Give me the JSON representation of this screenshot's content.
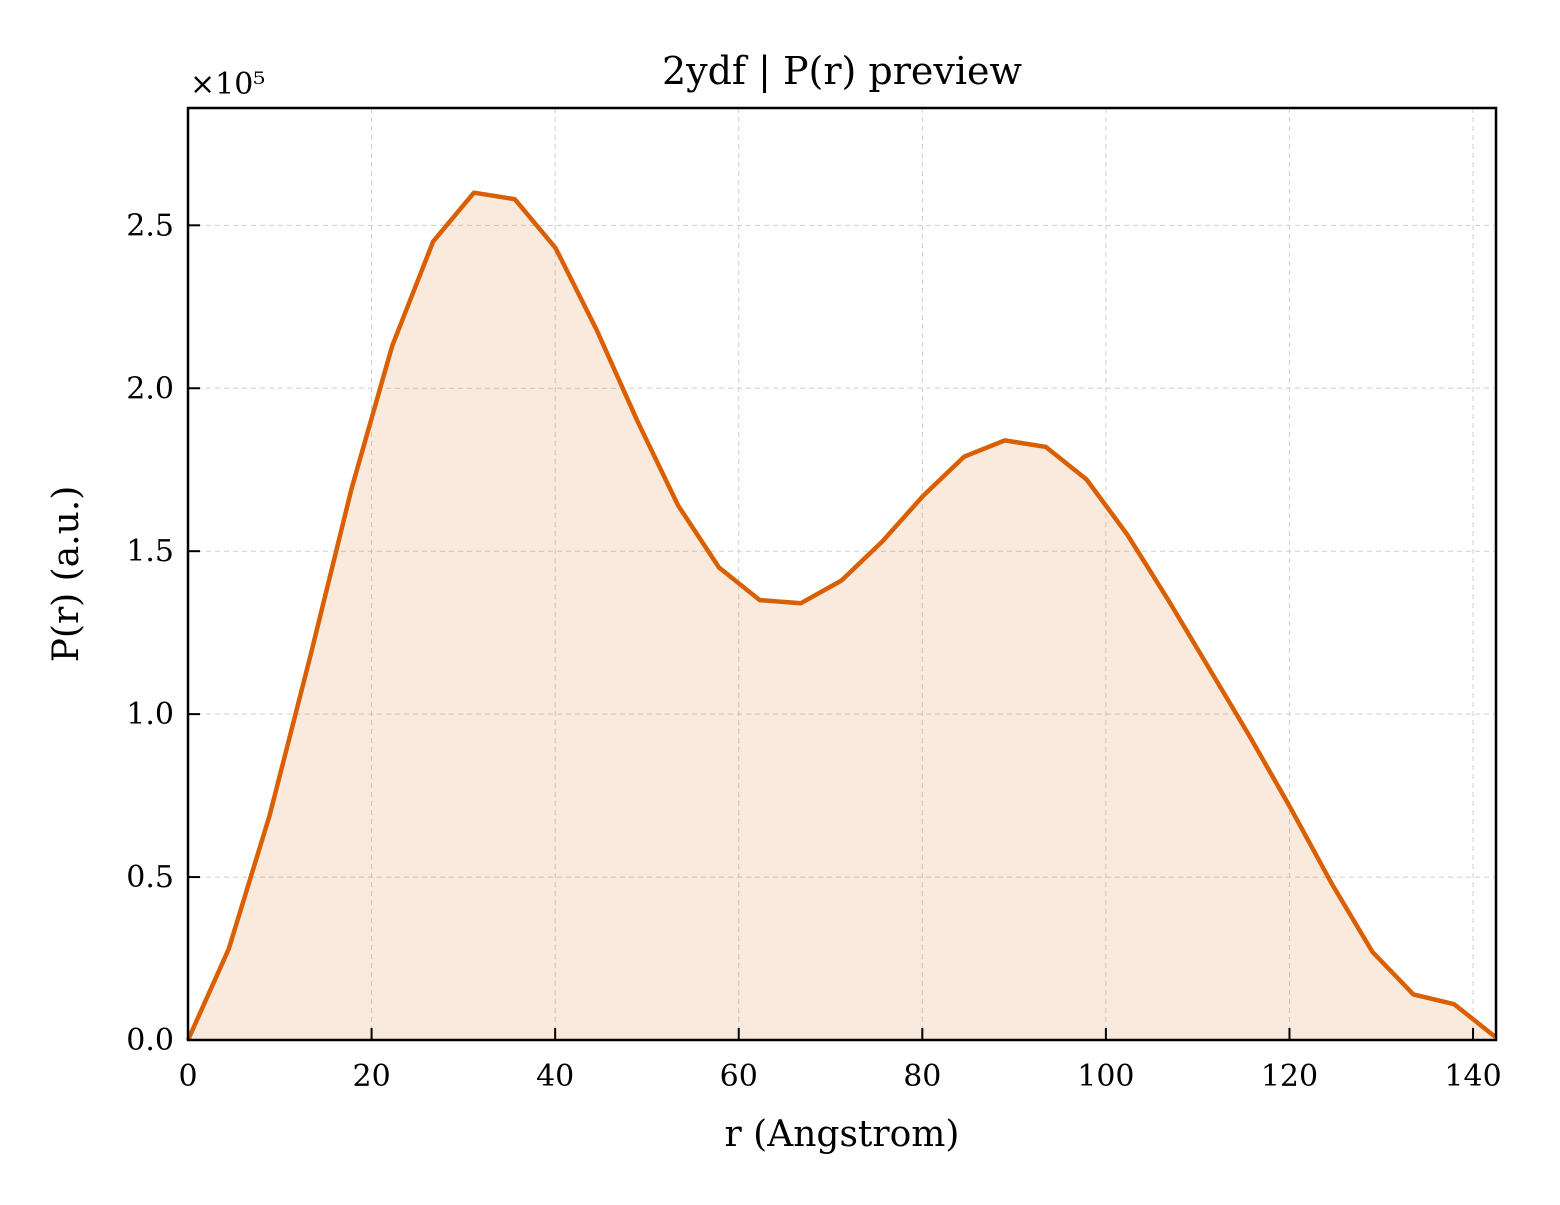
{
  "chart_data": {
    "type": "area",
    "title": "2ydf | P(r) preview",
    "xlabel": "r (Angstrom)",
    "ylabel": "P(r) (a.u.)",
    "y_offset_label": "×10⁵",
    "y_scale": 100000,
    "xlim": [
      0,
      142.5
    ],
    "ylim": [
      0,
      2.86
    ],
    "x_ticks": [
      0,
      20,
      40,
      60,
      80,
      100,
      120,
      140
    ],
    "x_tick_labels": [
      "0",
      "20",
      "40",
      "60",
      "80",
      "100",
      "120",
      "140"
    ],
    "y_ticks": [
      0,
      0.5,
      1.0,
      1.5,
      2.0,
      2.5
    ],
    "y_tick_labels": [
      "0.0",
      "0.5",
      "1.0",
      "1.5",
      "2.0",
      "2.5"
    ],
    "grid": true,
    "series": [
      {
        "color": "#d95f02",
        "fill_color": "#d95f02",
        "fill_opacity": 0.13,
        "x": [
          0,
          4.45,
          8.9,
          13.35,
          17.8,
          22.25,
          26.7,
          31.15,
          35.6,
          40.05,
          44.5,
          48.95,
          53.4,
          57.85,
          62.3,
          66.75,
          71.2,
          75.65,
          80.1,
          84.55,
          89.0,
          93.45,
          97.9,
          102.35,
          106.8,
          111.25,
          115.7,
          120.15,
          124.6,
          129.05,
          133.5,
          137.95,
          142.4
        ],
        "y": [
          0.0,
          0.28,
          0.69,
          1.18,
          1.69,
          2.13,
          2.45,
          2.6,
          2.58,
          2.43,
          2.18,
          1.9,
          1.64,
          1.45,
          1.35,
          1.34,
          1.41,
          1.53,
          1.67,
          1.79,
          1.84,
          1.82,
          1.72,
          1.55,
          1.35,
          1.14,
          0.93,
          0.71,
          0.48,
          0.27,
          0.14,
          0.11,
          0.01
        ]
      }
    ]
  }
}
